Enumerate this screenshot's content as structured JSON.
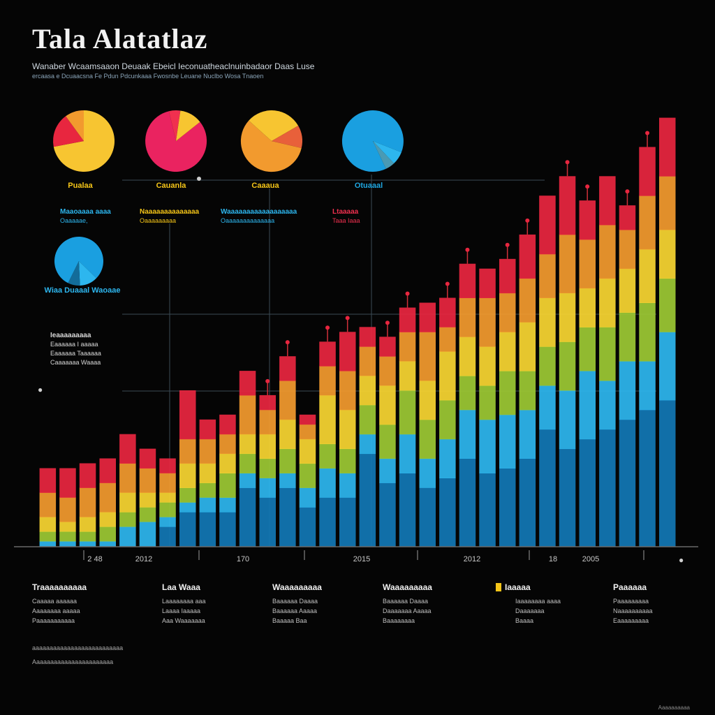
{
  "header": {
    "title": "Tala Alatatlaz",
    "subtitle_line1": "Wanaber Wcaamsaaon Deuaak Ebeicl Ieconuatheaclnuinbadaor Daas Luse",
    "subtitle_line2": "ercaasa e Dcuaacsna Fe Pdun Pdcunkaaa Fwosnbe Leuane Nuclbo Wosa Tnaoen"
  },
  "pies": [
    {
      "label": "Pualaa",
      "label_color": "#f5c518",
      "colors": [
        "#f7c531",
        "#e8263f",
        "#f29a2e"
      ],
      "values": [
        72,
        18,
        10
      ]
    },
    {
      "label": "Cauanla",
      "label_color": "#f5c518",
      "colors": [
        "#ea2360",
        "#f0304f",
        "#f7c531"
      ],
      "values": [
        82,
        6,
        12
      ]
    },
    {
      "label": "Caaaua",
      "label_color": "#f5c518",
      "colors": [
        "#f29a2e",
        "#f7c531",
        "#e8603a"
      ],
      "values": [
        58,
        30,
        12
      ]
    },
    {
      "label": "Otuaaal",
      "label_color": "#1fa6e0",
      "colors": [
        "#1a9fe0",
        "#2db6ee",
        "#4a9ab4"
      ],
      "values": [
        88,
        7,
        5
      ]
    },
    {
      "label": "Wiaa Duaaal Waoaae",
      "label_color": "#2db6ee",
      "colors": [
        "#1a9fe0",
        "#2db6ee",
        "#136c9a"
      ],
      "values": [
        80,
        12,
        8
      ]
    }
  ],
  "notes": [
    {
      "head": "Maaoaaaa aaaa",
      "line": "Oaaaaae,",
      "color": "#2db6ee"
    },
    {
      "head": "Naaaaaaaaaaaaaa",
      "line": "Oaaaaaaaaa",
      "color": "#f5c518"
    },
    {
      "head": "Waaaaaaaaaaaaaaaaaa",
      "line": "Oaaaaaaaaaaaaaa",
      "color": "#2db6ee"
    },
    {
      "head": "Ltaaaaa",
      "line": "Taaa Iaaa",
      "color": "#f0304f"
    }
  ],
  "side_note": {
    "head": "Ieaaaaaaaaa",
    "lines": [
      "Eaaaaaa I aaaaa",
      "Eaaaaaa Taaaaaa",
      "Caaaaaaa Waaaa"
    ]
  },
  "legend": [
    {
      "head": "Traaaaaaaaaa",
      "lines": [
        "Caaaaa aaaaaa",
        "Aaaaaaaa aaaaa",
        "Paaaaaaaaaaa"
      ],
      "swatch": ""
    },
    {
      "head": "Laa Waaa",
      "lines": [
        "Laaaaaaaa aaa",
        "Laaaa  Iaaaaa",
        "Aaa  Waaaaaaa"
      ],
      "swatch": ""
    },
    {
      "head": "Waaaaaaaaa",
      "lines": [
        "Baaaaaa Daaaa",
        "Baaaaaa Aaaaa",
        "Baaaaa Baa"
      ],
      "swatch": ""
    },
    {
      "head": "Waaaaaaaaa",
      "lines": [
        "Baaaaaa Daaaa",
        "Daaaaaaa Aaaaa",
        "Baaaaaaaa"
      ],
      "swatch": ""
    },
    {
      "head": "Iaaaaa",
      "lines": [
        "Iaaaaaaaa aaaa",
        "Daaaaaaa",
        "Baaaa"
      ],
      "swatch": "#f5c518"
    },
    {
      "head": "Paaaaaa",
      "lines": [
        "Paaaaaaaaa",
        "Naaaaaaaaaa",
        "Eaaaaaaaaa"
      ],
      "swatch": ""
    }
  ],
  "footnote": [
    "aaaaaaaaaaaaaaaaaaaaaaaaaa",
    "Aaaaaaaaaaaaaaaaaaaaaaa"
  ],
  "corner_text": "Aaaaaaaaaa",
  "colors": {
    "red": "#e8263f",
    "orange": "#f0602e",
    "amber": "#f29a2e",
    "yellow": "#f7d531",
    "green": "#9cc834",
    "cyan": "#2db6ee",
    "blue": "#1277b5"
  },
  "chart_data": {
    "type": "bar",
    "title": "Tala Alatatlaz",
    "stacked": true,
    "x_tick_labels": [
      "2 48",
      "2012",
      "170",
      "2015",
      "2012",
      "18",
      "2005"
    ],
    "series": [
      {
        "name": "blue",
        "color": "#1277b5"
      },
      {
        "name": "cyan",
        "color": "#2db6ee"
      },
      {
        "name": "green",
        "color": "#9cc834"
      },
      {
        "name": "yellow",
        "color": "#f7d531"
      },
      {
        "name": "orange",
        "color": "#f29a2e"
      },
      {
        "name": "red",
        "color": "#e8263f"
      }
    ],
    "bars": [
      {
        "total": 16,
        "parts": [
          0,
          1,
          2,
          3,
          5,
          5
        ]
      },
      {
        "total": 16,
        "parts": [
          0,
          1,
          2,
          2,
          5,
          6
        ]
      },
      {
        "total": 17,
        "parts": [
          0,
          1,
          2,
          3,
          6,
          5
        ]
      },
      {
        "total": 18,
        "parts": [
          0,
          1,
          3,
          3,
          6,
          5
        ]
      },
      {
        "total": 23,
        "parts": [
          0,
          4,
          3,
          4,
          6,
          6
        ]
      },
      {
        "total": 20,
        "parts": [
          0,
          5,
          3,
          3,
          5,
          4
        ]
      },
      {
        "total": 18,
        "parts": [
          4,
          2,
          3,
          2,
          4,
          3
        ]
      },
      {
        "total": 32,
        "parts": [
          7,
          2,
          3,
          5,
          5,
          10
        ]
      },
      {
        "total": 26,
        "parts": [
          7,
          3,
          3,
          4,
          5,
          4
        ]
      },
      {
        "total": 27,
        "parts": [
          7,
          3,
          5,
          4,
          4,
          4
        ]
      },
      {
        "total": 36,
        "parts": [
          12,
          3,
          4,
          4,
          8,
          5
        ]
      },
      {
        "total": 31,
        "parts": [
          10,
          4,
          4,
          5,
          5,
          3
        ]
      },
      {
        "total": 39,
        "parts": [
          12,
          3,
          5,
          6,
          8,
          5
        ]
      },
      {
        "total": 27,
        "parts": [
          8,
          4,
          5,
          5,
          3,
          2
        ]
      },
      {
        "total": 42,
        "parts": [
          10,
          6,
          5,
          10,
          6,
          5
        ]
      },
      {
        "total": 44,
        "parts": [
          10,
          5,
          5,
          8,
          8,
          8
        ]
      },
      {
        "total": 45,
        "parts": [
          19,
          4,
          6,
          6,
          6,
          4
        ]
      },
      {
        "total": 43,
        "parts": [
          13,
          5,
          7,
          8,
          6,
          4
        ]
      },
      {
        "total": 49,
        "parts": [
          15,
          8,
          9,
          6,
          6,
          5
        ]
      },
      {
        "total": 50,
        "parts": [
          12,
          6,
          8,
          8,
          10,
          6
        ]
      },
      {
        "total": 51,
        "parts": [
          14,
          8,
          8,
          10,
          5,
          6
        ]
      },
      {
        "total": 58,
        "parts": [
          18,
          10,
          7,
          8,
          8,
          7
        ]
      },
      {
        "total": 57,
        "parts": [
          15,
          11,
          7,
          8,
          10,
          6
        ]
      },
      {
        "total": 59,
        "parts": [
          16,
          11,
          9,
          8,
          8,
          7
        ]
      },
      {
        "total": 64,
        "parts": [
          18,
          10,
          8,
          10,
          9,
          9
        ]
      },
      {
        "total": 72,
        "parts": [
          24,
          9,
          8,
          10,
          9,
          12
        ]
      },
      {
        "total": 76,
        "parts": [
          20,
          12,
          10,
          10,
          12,
          12
        ]
      },
      {
        "total": 71,
        "parts": [
          22,
          14,
          9,
          8,
          10,
          8
        ]
      },
      {
        "total": 76,
        "parts": [
          24,
          10,
          11,
          10,
          11,
          10
        ]
      },
      {
        "total": 70,
        "parts": [
          26,
          12,
          10,
          9,
          8,
          5
        ]
      },
      {
        "total": 82,
        "parts": [
          28,
          10,
          12,
          11,
          11,
          10
        ]
      },
      {
        "total": 88,
        "parts": [
          30,
          14,
          11,
          10,
          11,
          12
        ]
      }
    ],
    "ylim": [
      0,
      100
    ],
    "xlabel": "",
    "ylabel": ""
  }
}
